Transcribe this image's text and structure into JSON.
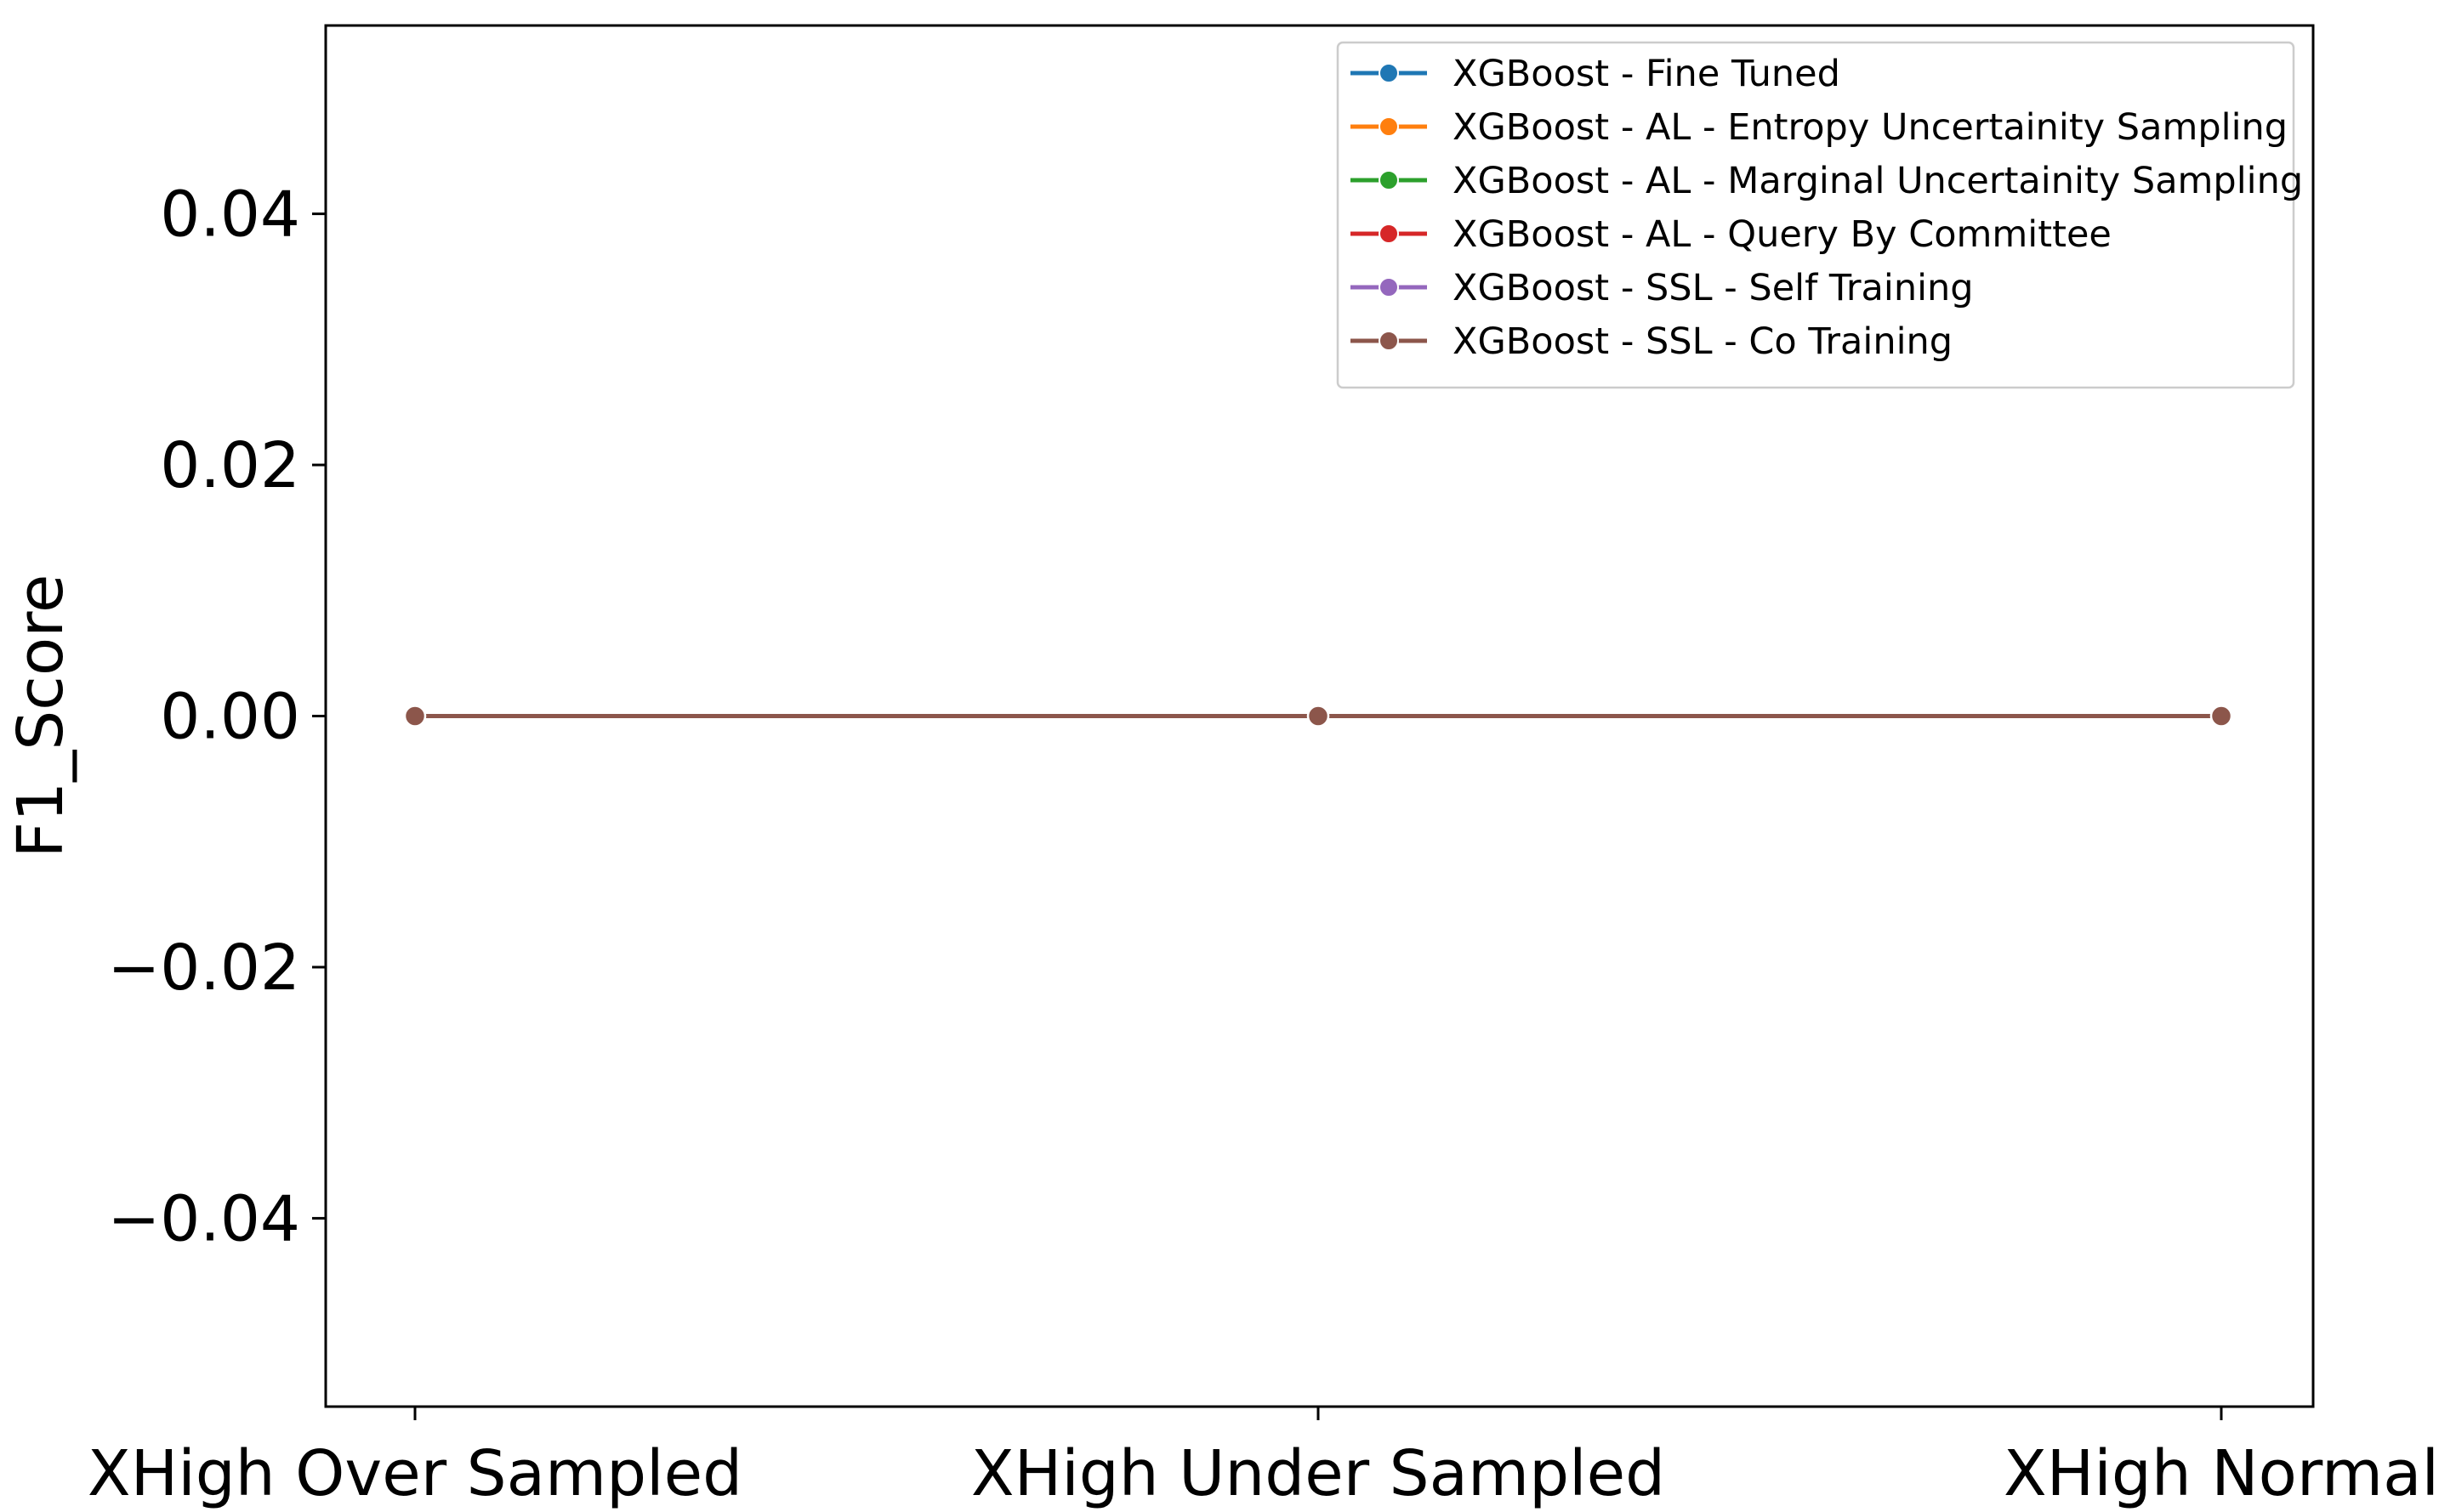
{
  "chart_data": {
    "type": "line",
    "title": "",
    "xlabel": "",
    "ylabel": "F1_Score",
    "categories": [
      "XHigh Over Sampled",
      "XHigh Under Sampled",
      "XHigh Normal"
    ],
    "ylim": [
      -0.055,
      0.055
    ],
    "yticks": [
      -0.04,
      -0.02,
      0.0,
      0.02,
      0.04
    ],
    "ytick_labels": [
      "−0.04",
      "−0.02",
      "0.00",
      "0.02",
      "0.04"
    ],
    "grid": false,
    "legend_position": "top-right",
    "series": [
      {
        "name": "XGBoost - Fine Tuned",
        "color": "#1f77b4",
        "values": [
          0,
          0,
          0
        ]
      },
      {
        "name": "XGBoost - AL - Entropy Uncertainity Sampling",
        "color": "#ff7f0e",
        "values": [
          0,
          0,
          0
        ]
      },
      {
        "name": "XGBoost - AL - Marginal Uncertainity Sampling",
        "color": "#2ca02c",
        "values": [
          0,
          0,
          0
        ]
      },
      {
        "name": "XGBoost - AL - Query By Committee",
        "color": "#d62728",
        "values": [
          0,
          0,
          0
        ]
      },
      {
        "name": "XGBoost - SSL - Self Training",
        "color": "#9467bd",
        "values": [
          0,
          0,
          0
        ]
      },
      {
        "name": "XGBoost - SSL - Co Training",
        "color": "#8c564b",
        "values": [
          0,
          0,
          0
        ]
      }
    ]
  }
}
